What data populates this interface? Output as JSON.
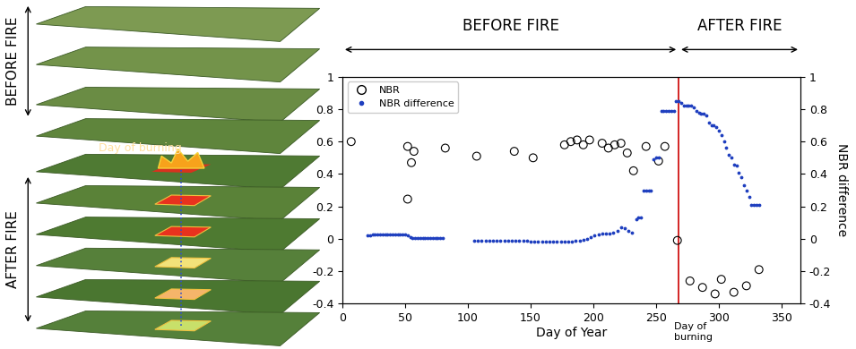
{
  "chart_data": {
    "type": "scatter",
    "xlabel": "Day of Year",
    "y2label": "NBR difference",
    "annotations": {
      "before": "BEFORE FIRE",
      "after": "AFTER FIRE",
      "burn": "Day of\nburning"
    },
    "burn_day": 268,
    "burn_color": "#cc0000",
    "xlim": [
      0,
      365
    ],
    "xticks": [
      0,
      50,
      100,
      150,
      200,
      250,
      300,
      350
    ],
    "ylim": [
      -0.4,
      1
    ],
    "yticks": [
      -0.4,
      -0.2,
      0,
      0.2,
      0.4,
      0.6,
      0.8,
      1
    ],
    "y2lim": [
      -0.4,
      1
    ],
    "y2ticks": [
      -0.4,
      -0.2,
      0,
      0.2,
      0.4,
      0.6,
      0.8,
      1
    ],
    "legend": "upper left",
    "series": [
      {
        "name": "NBR",
        "color": "#000000",
        "marker": "circle",
        "x": [
          7,
          52,
          52,
          55,
          57,
          82,
          107,
          137,
          152,
          177,
          182,
          187,
          192,
          197,
          207,
          212,
          217,
          222,
          227,
          232,
          242,
          252,
          257,
          267,
          277,
          287,
          297,
          302,
          312,
          322,
          332
        ],
        "values": [
          0.6,
          0.57,
          0.245,
          0.47,
          0.54,
          0.56,
          0.51,
          0.54,
          0.5,
          0.58,
          0.6,
          0.61,
          0.58,
          0.61,
          0.59,
          0.56,
          0.58,
          0.59,
          0.53,
          0.42,
          0.57,
          0.48,
          0.57,
          -0.01,
          -0.26,
          -0.3,
          -0.34,
          -0.25,
          -0.33,
          -0.29,
          -0.19
        ]
      },
      {
        "name": "NBR difference",
        "color": "#1f3fbf",
        "marker": "dot",
        "axis": "y2",
        "x": [
          20,
          22,
          24,
          26,
          28,
          30,
          32,
          34,
          36,
          38,
          40,
          42,
          44,
          46,
          48,
          50,
          52,
          54,
          56,
          58,
          60,
          62,
          64,
          66,
          68,
          70,
          72,
          74,
          76,
          78,
          80,
          105,
          108,
          111,
          114,
          117,
          120,
          123,
          126,
          129,
          132,
          135,
          138,
          141,
          144,
          147,
          150,
          153,
          156,
          159,
          162,
          165,
          168,
          171,
          174,
          177,
          180,
          183,
          186,
          189,
          192,
          195,
          198,
          201,
          204,
          207,
          210,
          213,
          216,
          219,
          222,
          225,
          228,
          231,
          234,
          236,
          238,
          240,
          242,
          244,
          246,
          248,
          250,
          252,
          254,
          256,
          258,
          260,
          262,
          264,
          266,
          268,
          270,
          272,
          274,
          276,
          278,
          280,
          282,
          284,
          286,
          288,
          290,
          292,
          294,
          296,
          298,
          300,
          302,
          304,
          306,
          308,
          310,
          312,
          314,
          316,
          318,
          320,
          322,
          324,
          326,
          328,
          330,
          332
        ],
        "values": [
          0.02,
          0.02,
          0.025,
          0.025,
          0.025,
          0.025,
          0.025,
          0.025,
          0.025,
          0.025,
          0.025,
          0.025,
          0.025,
          0.025,
          0.025,
          0.025,
          0.02,
          0.01,
          0.005,
          0.005,
          0.005,
          0.005,
          0.005,
          0.005,
          0.005,
          0.005,
          0.005,
          0.005,
          0.005,
          0.005,
          0.005,
          -0.01,
          -0.01,
          -0.01,
          -0.01,
          -0.01,
          -0.01,
          -0.01,
          -0.01,
          -0.01,
          -0.01,
          -0.01,
          -0.01,
          -0.01,
          -0.01,
          -0.01,
          -0.015,
          -0.015,
          -0.015,
          -0.015,
          -0.02,
          -0.02,
          -0.02,
          -0.02,
          -0.02,
          -0.02,
          -0.015,
          -0.015,
          -0.01,
          -0.01,
          -0.005,
          0,
          0.01,
          0.02,
          0.025,
          0.03,
          0.03,
          0.035,
          0.04,
          0.05,
          0.07,
          0.065,
          0.05,
          0.04,
          0.12,
          0.13,
          0.13,
          0.3,
          0.3,
          0.3,
          0.3,
          0.49,
          0.5,
          0.5,
          0.79,
          0.79,
          0.79,
          0.79,
          0.79,
          0.79,
          0.85,
          0.85,
          0.84,
          0.82,
          0.82,
          0.82,
          0.82,
          0.81,
          0.79,
          0.78,
          0.77,
          0.77,
          0.76,
          0.72,
          0.7,
          0.7,
          0.69,
          0.67,
          0.64,
          0.6,
          0.56,
          0.52,
          0.5,
          0.46,
          0.45,
          0.41,
          0.38,
          0.33,
          0.3,
          0.26,
          0.21,
          0.21,
          0.21,
          0.21
        ]
      }
    ]
  },
  "diagram": {
    "before_label": "BEFORE FIRE",
    "after_label": "AFTER FIRE",
    "burn_label": "Day of burning"
  }
}
